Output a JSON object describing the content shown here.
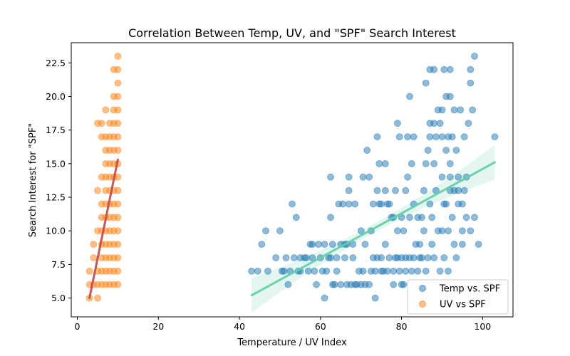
{
  "chart_data": {
    "type": "scatter",
    "title": "Correlation Between Temp, UV, and \"SPF\" Search Interest",
    "xlabel": "Temperature / UV Index",
    "ylabel": "Search Interest for \"SPF\"",
    "xlim": [
      -1.5,
      107.5
    ],
    "ylim": [
      3.6,
      24.0
    ],
    "xticks": [
      0,
      20,
      40,
      60,
      80,
      100
    ],
    "yticks": [
      5.0,
      7.5,
      10.0,
      12.5,
      15.0,
      17.5,
      20.0,
      22.5
    ],
    "grid": false,
    "legend_position": "lower-right",
    "series": [
      {
        "name": "Temp vs. SPF",
        "color": "#1f77b4",
        "fit_color": "#66cdaa",
        "fit": {
          "x0": 43,
          "y0": 5.2,
          "x1": 103,
          "y1": 15.1
        },
        "ci_color": "#66cdaa",
        "points": [
          [
            43,
            7
          ],
          [
            44.5,
            7
          ],
          [
            45.5,
            9
          ],
          [
            46.5,
            10
          ],
          [
            47,
            7
          ],
          [
            49,
            8
          ],
          [
            50,
            10
          ],
          [
            50.5,
            7
          ],
          [
            51,
            7
          ],
          [
            51.5,
            8
          ],
          [
            52,
            6
          ],
          [
            52.5,
            7
          ],
          [
            53,
            12
          ],
          [
            53.5,
            8
          ],
          [
            54,
            11
          ],
          [
            54.5,
            7
          ],
          [
            55,
            7
          ],
          [
            55,
            8
          ],
          [
            56,
            8
          ],
          [
            56.5,
            8
          ],
          [
            57,
            7
          ],
          [
            57.5,
            9
          ],
          [
            58,
            9
          ],
          [
            58,
            8
          ],
          [
            58.5,
            7
          ],
          [
            59,
            6
          ],
          [
            59.5,
            9
          ],
          [
            60,
            8
          ],
          [
            60.5,
            7
          ],
          [
            61,
            9
          ],
          [
            61,
            5
          ],
          [
            61.5,
            7
          ],
          [
            62,
            8
          ],
          [
            62.5,
            8
          ],
          [
            62.5,
            14
          ],
          [
            62.5,
            11
          ],
          [
            63,
            9
          ],
          [
            63,
            6
          ],
          [
            63.5,
            6
          ],
          [
            64,
            7
          ],
          [
            64,
            8
          ],
          [
            64.5,
            12
          ],
          [
            65,
            9
          ],
          [
            65,
            6
          ],
          [
            65.5,
            12
          ],
          [
            66,
            9
          ],
          [
            66,
            8
          ],
          [
            66.5,
            6
          ],
          [
            66.5,
            9
          ],
          [
            67,
            14
          ],
          [
            67,
            13
          ],
          [
            67,
            12
          ],
          [
            67.5,
            6
          ],
          [
            68,
            9
          ],
          [
            68,
            8
          ],
          [
            68.5,
            6
          ],
          [
            68.5,
            12
          ],
          [
            69,
            6
          ],
          [
            69.5,
            7
          ],
          [
            70,
            6
          ],
          [
            70,
            10
          ],
          [
            70.5,
            7
          ],
          [
            70.5,
            14
          ],
          [
            71,
            6
          ],
          [
            71,
            9
          ],
          [
            71.5,
            16
          ],
          [
            72,
            6
          ],
          [
            72,
            14
          ],
          [
            72.5,
            7
          ],
          [
            72.5,
            10
          ],
          [
            73,
            8
          ],
          [
            73,
            12
          ],
          [
            73.5,
            5
          ],
          [
            73.5,
            7
          ],
          [
            74,
            8
          ],
          [
            74,
            17
          ],
          [
            74,
            13
          ],
          [
            74.5,
            15
          ],
          [
            74.5,
            12
          ],
          [
            75,
            7
          ],
          [
            75,
            8
          ],
          [
            75,
            12
          ],
          [
            75.5,
            7
          ],
          [
            76,
            9
          ],
          [
            76,
            13
          ],
          [
            76,
            15
          ],
          [
            76.5,
            7
          ],
          [
            76.5,
            12
          ],
          [
            77,
            8
          ],
          [
            77,
            12
          ],
          [
            77.5,
            11
          ],
          [
            78,
            6
          ],
          [
            78,
            7
          ],
          [
            78,
            11
          ],
          [
            78.5,
            8
          ],
          [
            78.5,
            13
          ],
          [
            79,
            18
          ],
          [
            79,
            10
          ],
          [
            79,
            8
          ],
          [
            79.5,
            17
          ],
          [
            79.5,
            7
          ],
          [
            80,
            6
          ],
          [
            80,
            8
          ],
          [
            80,
            11
          ],
          [
            80.5,
            6
          ],
          [
            80.5,
            10
          ],
          [
            81,
            7
          ],
          [
            81,
            8
          ],
          [
            81,
            13
          ],
          [
            81.5,
            17
          ],
          [
            81.5,
            14
          ],
          [
            82,
            20
          ],
          [
            82,
            8
          ],
          [
            82,
            11
          ],
          [
            82.5,
            7
          ],
          [
            82.5,
            15
          ],
          [
            83,
            8
          ],
          [
            83,
            12
          ],
          [
            83,
            17
          ],
          [
            83.5,
            9
          ],
          [
            84,
            7
          ],
          [
            84,
            11
          ],
          [
            84.5,
            8
          ],
          [
            84.5,
            9
          ],
          [
            85,
            8
          ],
          [
            85,
            11
          ],
          [
            85.5,
            10
          ],
          [
            85.5,
            13
          ],
          [
            86,
            7
          ],
          [
            86,
            15
          ],
          [
            86,
            21
          ],
          [
            86.5,
            8
          ],
          [
            86.5,
            16
          ],
          [
            87,
            22
          ],
          [
            87,
            18
          ],
          [
            87,
            17
          ],
          [
            87,
            12
          ],
          [
            87.5,
            9
          ],
          [
            87.5,
            11
          ],
          [
            88,
            8
          ],
          [
            88,
            18
          ],
          [
            88,
            15
          ],
          [
            88,
            22
          ],
          [
            88.5,
            17
          ],
          [
            88.5,
            13
          ],
          [
            89,
            10
          ],
          [
            89,
            19
          ],
          [
            89.5,
            18
          ],
          [
            89.5,
            7
          ],
          [
            90,
            10
          ],
          [
            90,
            14
          ],
          [
            90,
            17
          ],
          [
            90,
            19
          ],
          [
            90.5,
            22
          ],
          [
            90.5,
            8
          ],
          [
            90.5,
            12
          ],
          [
            91,
            16
          ],
          [
            91,
            12
          ],
          [
            91,
            20
          ],
          [
            91.5,
            17
          ],
          [
            91.5,
            7
          ],
          [
            91.5,
            10
          ],
          [
            92,
            13
          ],
          [
            92,
            14
          ],
          [
            92,
            15
          ],
          [
            92,
            20
          ],
          [
            92,
            22
          ],
          [
            92.5,
            17
          ],
          [
            92.5,
            11
          ],
          [
            93,
            9
          ],
          [
            93,
            13
          ],
          [
            93,
            19
          ],
          [
            93.5,
            16
          ],
          [
            93.5,
            8
          ],
          [
            94,
            12
          ],
          [
            94,
            14
          ],
          [
            94,
            13
          ],
          [
            94.5,
            19
          ],
          [
            95,
            10
          ],
          [
            95,
            12
          ],
          [
            95,
            9
          ],
          [
            95.5,
            13
          ],
          [
            95.5,
            17
          ],
          [
            96,
            14
          ],
          [
            96,
            11
          ],
          [
            96.5,
            18
          ],
          [
            97,
            22
          ],
          [
            97,
            21
          ],
          [
            97,
            10
          ],
          [
            97.5,
            19
          ],
          [
            98,
            23
          ],
          [
            98,
            11
          ],
          [
            99,
            9
          ],
          [
            103,
            17
          ]
        ]
      },
      {
        "name": "UV vs SPF",
        "color": "#ff7f0e",
        "fit_color": "#c1504e",
        "fit": {
          "x0": 3,
          "y0": 5.0,
          "x1": 10,
          "y1": 15.3
        },
        "points": [
          [
            3,
            5
          ],
          [
            3,
            6
          ],
          [
            3,
            7
          ],
          [
            4,
            6
          ],
          [
            4,
            8
          ],
          [
            4,
            9
          ],
          [
            5,
            5
          ],
          [
            5,
            6
          ],
          [
            5,
            7
          ],
          [
            5,
            10
          ],
          [
            5,
            13
          ],
          [
            5,
            18
          ],
          [
            6,
            6
          ],
          [
            6,
            7
          ],
          [
            6,
            8
          ],
          [
            6,
            9
          ],
          [
            6,
            10
          ],
          [
            6,
            11
          ],
          [
            6,
            12
          ],
          [
            6,
            14
          ],
          [
            6,
            17
          ],
          [
            6,
            18
          ],
          [
            7,
            6
          ],
          [
            7,
            7
          ],
          [
            7,
            8
          ],
          [
            7,
            9
          ],
          [
            7,
            10
          ],
          [
            7,
            11
          ],
          [
            7,
            12
          ],
          [
            7,
            13
          ],
          [
            7,
            14
          ],
          [
            7,
            15
          ],
          [
            7,
            16
          ],
          [
            7,
            17
          ],
          [
            7,
            19
          ],
          [
            8,
            6
          ],
          [
            8,
            7
          ],
          [
            8,
            8
          ],
          [
            8,
            9
          ],
          [
            8,
            10
          ],
          [
            8,
            11
          ],
          [
            8,
            12
          ],
          [
            8,
            13
          ],
          [
            8,
            14
          ],
          [
            8,
            15
          ],
          [
            8,
            16
          ],
          [
            8,
            17
          ],
          [
            8,
            18
          ],
          [
            9,
            6
          ],
          [
            9,
            7
          ],
          [
            9,
            8
          ],
          [
            9,
            9
          ],
          [
            9,
            10
          ],
          [
            9,
            11
          ],
          [
            9,
            12
          ],
          [
            9,
            13
          ],
          [
            9,
            14
          ],
          [
            9,
            15
          ],
          [
            9,
            16
          ],
          [
            9,
            17
          ],
          [
            9,
            18
          ],
          [
            9,
            19
          ],
          [
            9,
            20
          ],
          [
            9,
            22
          ],
          [
            10,
            6
          ],
          [
            10,
            7
          ],
          [
            10,
            8
          ],
          [
            10,
            9
          ],
          [
            10,
            10
          ],
          [
            10,
            11
          ],
          [
            10,
            12
          ],
          [
            10,
            13
          ],
          [
            10,
            14
          ],
          [
            10,
            15
          ],
          [
            10,
            16
          ],
          [
            10,
            17
          ],
          [
            10,
            18
          ],
          [
            10,
            19
          ],
          [
            10,
            20
          ],
          [
            10,
            21
          ],
          [
            10,
            22
          ],
          [
            10,
            23
          ]
        ]
      }
    ]
  }
}
